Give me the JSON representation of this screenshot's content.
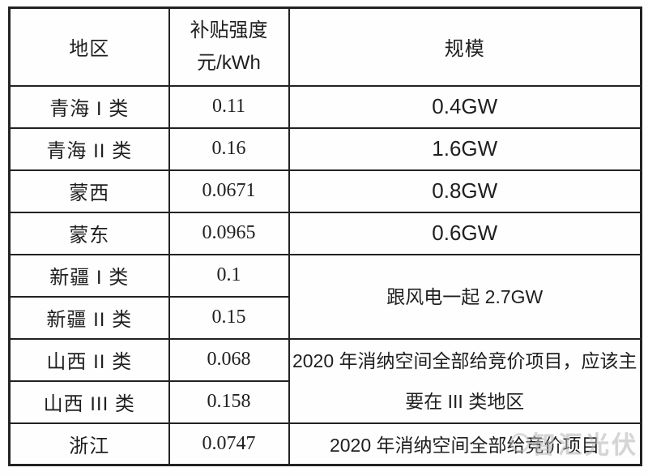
{
  "table": {
    "header": {
      "region": "地区",
      "subsidy_line1": "补贴强度",
      "subsidy_line2": "元/kWh",
      "scale": "规模"
    },
    "rows": [
      {
        "region": "青海 I 类",
        "subsidy": "0.11"
      },
      {
        "region": "青海 II 类",
        "subsidy": "0.16"
      },
      {
        "region": "蒙西",
        "subsidy": "0.0671"
      },
      {
        "region": "蒙东",
        "subsidy": "0.0965"
      },
      {
        "region": "新疆 I 类",
        "subsidy": "0.1"
      },
      {
        "region": "新疆 II 类",
        "subsidy": "0.15"
      },
      {
        "region": "山西 II 类",
        "subsidy": "0.068"
      },
      {
        "region": "山西 III 类",
        "subsidy": "0.158"
      },
      {
        "region": "浙江",
        "subsidy": "0.0747"
      }
    ],
    "scale": {
      "qinghai1": "0.4GW",
      "qinghai2": "1.6GW",
      "mengxi": "0.8GW",
      "mengdong": "0.6GW",
      "xinjiang_merged": "跟风电一起 2.7GW",
      "shanxi_merged": "2020 年消纳空间全部给竞价项目，应该主要在 III 类地区",
      "zhejiang": "2020 年消纳空间全部给竞价项目"
    }
  },
  "watermark": {
    "text": "智汇光伏"
  },
  "colors": {
    "border": "#222222",
    "text": "#1f1f1f",
    "watermark_gray": "#b5b5b5",
    "background": "#fefefe"
  }
}
